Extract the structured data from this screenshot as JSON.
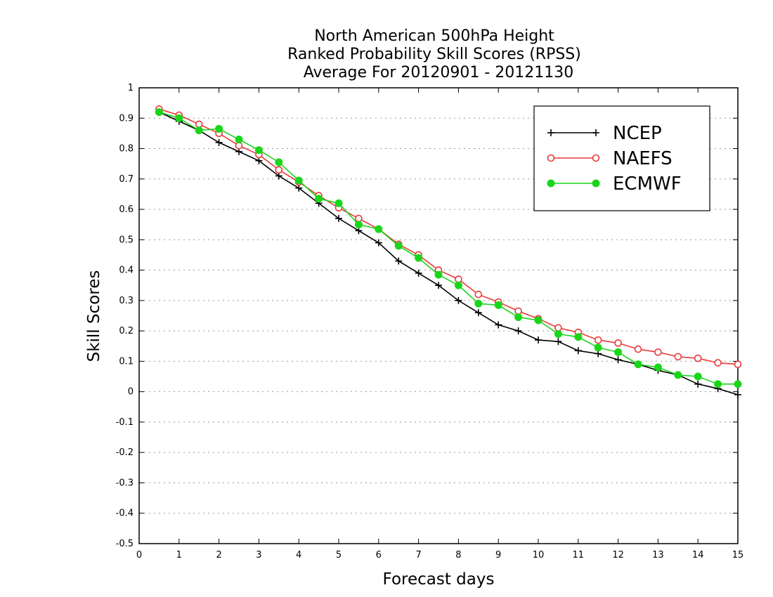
{
  "chart_data": {
    "type": "line",
    "title": [
      "North American 500hPa Height",
      "Ranked Probability Skill Scores (RPSS)",
      "Average For 20120901 - 20121130"
    ],
    "xlabel": "Forecast days",
    "ylabel": "Skill Scores",
    "xlim": [
      0,
      15
    ],
    "ylim": [
      -0.5,
      1
    ],
    "xticks": [
      0,
      1,
      2,
      3,
      4,
      5,
      6,
      7,
      8,
      9,
      10,
      11,
      12,
      13,
      14,
      15
    ],
    "xtick_labels": [
      "0",
      "1",
      "2",
      "3",
      "4",
      "5",
      "6",
      "7",
      "8",
      "9",
      "10",
      "11",
      "12",
      "13",
      "14",
      "15"
    ],
    "yticks": [
      -0.5,
      -0.4,
      -0.3,
      -0.2,
      -0.1,
      0,
      0.1,
      0.2,
      0.3,
      0.4,
      0.5,
      0.6,
      0.7,
      0.8,
      0.9,
      1
    ],
    "ytick_labels": [
      "-0.5",
      "-0.4",
      "-0.3",
      "-0.2",
      "-0.1",
      "0",
      "0.1",
      "0.2",
      "0.3",
      "0.4",
      "0.5",
      "0.6",
      "0.7",
      "0.8",
      "0.9",
      "1"
    ],
    "grid": "horizontal-dotted",
    "legend_position": "top-right",
    "x": [
      0.5,
      1,
      1.5,
      2,
      2.5,
      3,
      3.5,
      4,
      4.5,
      5,
      5.5,
      6,
      6.5,
      7,
      7.5,
      8,
      8.5,
      9,
      9.5,
      10,
      10.5,
      11,
      11.5,
      12,
      12.5,
      13,
      13.5,
      14,
      14.5,
      15
    ],
    "series": [
      {
        "name": "NCEP",
        "color": "#000000",
        "marker": "plus",
        "values": [
          0.92,
          0.89,
          0.86,
          0.82,
          0.79,
          0.76,
          0.71,
          0.67,
          0.62,
          0.57,
          0.53,
          0.49,
          0.43,
          0.39,
          0.35,
          0.3,
          0.26,
          0.22,
          0.2,
          0.17,
          0.165,
          0.135,
          0.125,
          0.105,
          0.09,
          0.07,
          0.055,
          0.025,
          0.01,
          -0.01
        ]
      },
      {
        "name": "NAEFS",
        "color": "#e83a3a",
        "marker": "open-circle",
        "values": [
          0.93,
          0.91,
          0.88,
          0.85,
          0.81,
          0.78,
          0.73,
          0.69,
          0.645,
          0.605,
          0.57,
          0.535,
          0.485,
          0.45,
          0.4,
          0.37,
          0.32,
          0.295,
          0.265,
          0.24,
          0.21,
          0.195,
          0.17,
          0.16,
          0.14,
          0.13,
          0.115,
          0.11,
          0.095,
          0.09
        ]
      },
      {
        "name": "ECMWF",
        "color": "#1ad61a",
        "marker": "filled-circle",
        "values": [
          0.92,
          0.9,
          0.86,
          0.865,
          0.83,
          0.795,
          0.755,
          0.695,
          0.635,
          0.62,
          0.55,
          0.535,
          0.48,
          0.44,
          0.385,
          0.35,
          0.29,
          0.285,
          0.245,
          0.235,
          0.19,
          0.18,
          0.145,
          0.13,
          0.09,
          0.08,
          0.055,
          0.05,
          0.025,
          0.025
        ]
      }
    ]
  }
}
